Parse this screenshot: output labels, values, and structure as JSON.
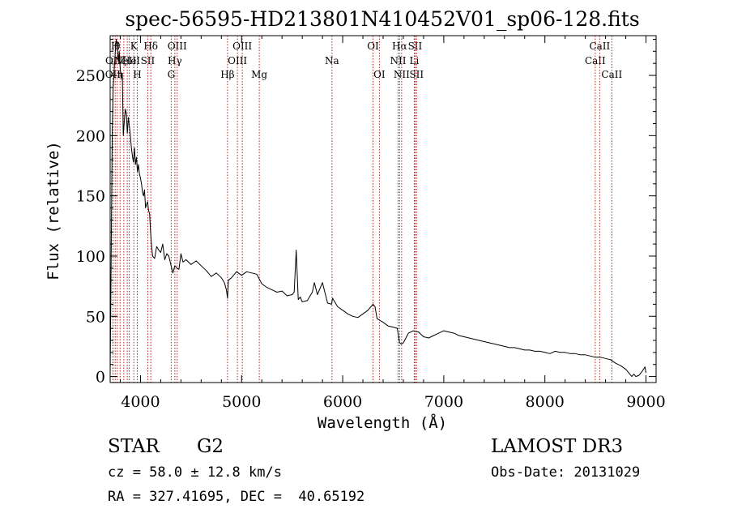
{
  "chart_data": {
    "type": "line",
    "title": "spec-56595-HD213801N410452V01_sp06-128.fits",
    "xlabel": "Wavelength (Å)",
    "ylabel": "Flux (relative)",
    "xlim": [
      3700,
      9100
    ],
    "ylim": [
      -5,
      283
    ],
    "xticks": [
      4000,
      5000,
      6000,
      7000,
      8000,
      9000
    ],
    "yticks": [
      0,
      50,
      100,
      150,
      200,
      250
    ],
    "grid": false,
    "line_color": "#000000",
    "marker_color": "#b22222",
    "series": [
      {
        "x": [
          3700,
          3710,
          3720,
          3730,
          3740,
          3750,
          3760,
          3770,
          3780,
          3790,
          3800,
          3810,
          3820,
          3830,
          3840,
          3850,
          3860,
          3870,
          3880,
          3890,
          3900,
          3910,
          3920,
          3930,
          3940,
          3950,
          3960,
          3970,
          3980,
          3990,
          4000,
          4010,
          4020,
          4030,
          4040,
          4050,
          4060,
          4070,
          4080,
          4090,
          4100,
          4110,
          4120,
          4140,
          4160,
          4180,
          4200,
          4220,
          4240,
          4260,
          4280,
          4300,
          4320,
          4340,
          4360,
          4380,
          4400,
          4420,
          4450,
          4500,
          4550,
          4600,
          4650,
          4700,
          4750,
          4800,
          4830,
          4850,
          4861,
          4870,
          4900,
          4950,
          5000,
          5050,
          5100,
          5150,
          5200,
          5250,
          5300,
          5350,
          5400,
          5450,
          5500,
          5520,
          5540,
          5560,
          5580,
          5600,
          5650,
          5700,
          5720,
          5750,
          5800,
          5850,
          5890,
          5900,
          5950,
          6000,
          6050,
          6100,
          6150,
          6200,
          6250,
          6300,
          6320,
          6340,
          6400,
          6450,
          6500,
          6540,
          6563,
          6580,
          6600,
          6650,
          6700,
          6750,
          6800,
          6850,
          6900,
          6950,
          7000,
          7050,
          7100,
          7150,
          7200,
          7250,
          7300,
          7350,
          7400,
          7450,
          7500,
          7550,
          7600,
          7650,
          7700,
          7750,
          7800,
          7850,
          7900,
          7950,
          8000,
          8050,
          8100,
          8150,
          8200,
          8250,
          8300,
          8350,
          8400,
          8450,
          8500,
          8550,
          8600,
          8650,
          8700,
          8750,
          8800,
          8830,
          8860,
          8880,
          8900,
          8930,
          8960,
          8990,
          9000
        ],
        "values": [
          1,
          95,
          200,
          240,
          255,
          268,
          280,
          275,
          262,
          270,
          255,
          248,
          252,
          200,
          212,
          222,
          218,
          202,
          215,
          208,
          200,
          190,
          183,
          178,
          190,
          176,
          182,
          170,
          176,
          168,
          165,
          160,
          153,
          150,
          155,
          140,
          143,
          145,
          138,
          135,
          120,
          108,
          100,
          98,
          108,
          105,
          103,
          110,
          97,
          102,
          100,
          93,
          86,
          92,
          90,
          89,
          102,
          95,
          97,
          93,
          96,
          92,
          88,
          83,
          86,
          82,
          78,
          72,
          65,
          80,
          82,
          87,
          84,
          87,
          86,
          85,
          77,
          74,
          72,
          70,
          71,
          67,
          68,
          70,
          105,
          64,
          66,
          62,
          63,
          70,
          78,
          68,
          78,
          61,
          60,
          65,
          58,
          55,
          52,
          50,
          49,
          52,
          55,
          60,
          58,
          48,
          45,
          42,
          41,
          40,
          28,
          27,
          28,
          36,
          38,
          37,
          33,
          32,
          34,
          36,
          38,
          37,
          36,
          34,
          33,
          32,
          31,
          30,
          29,
          28,
          27,
          26,
          25,
          24,
          24,
          23,
          22,
          22,
          21,
          21,
          20,
          19,
          21,
          20,
          20,
          19,
          19,
          18,
          18,
          17,
          16,
          16,
          15,
          14,
          11,
          9,
          6,
          3,
          0,
          2,
          0,
          1,
          4,
          8,
          3
        ]
      }
    ],
    "line_markers": [
      {
        "x": 3727,
        "label": "OII",
        "row": 2
      },
      {
        "x": 3729,
        "label": "OII",
        "row": 1
      },
      {
        "x": 3750,
        "label": "H",
        "row": 0
      },
      {
        "x": 3770,
        "label": "θ",
        "row": 0
      },
      {
        "x": 3798,
        "label": "η",
        "row": 2
      },
      {
        "x": 3835,
        "label": "ζ",
        "row": 1
      },
      {
        "x": 3869,
        "label": "NeIII",
        "row": 1
      },
      {
        "x": 3889,
        "label": "He",
        "row": 1
      },
      {
        "x": 3934,
        "label": "K",
        "row": 0
      },
      {
        "x": 3968,
        "label": "H",
        "row": 2
      },
      {
        "x": 4072,
        "label": "SII",
        "row": 1
      },
      {
        "x": 4102,
        "label": "Hδ",
        "row": 0
      },
      {
        "x": 4304,
        "label": "G",
        "row": 2
      },
      {
        "x": 4340,
        "label": "Hγ",
        "row": 1
      },
      {
        "x": 4363,
        "label": "OIII",
        "row": 0
      },
      {
        "x": 4861,
        "label": "Hβ",
        "row": 2
      },
      {
        "x": 4959,
        "label": "OIII",
        "row": 1
      },
      {
        "x": 5007,
        "label": "OIII",
        "row": 0
      },
      {
        "x": 5175,
        "label": "Mg",
        "row": 2
      },
      {
        "x": 5894,
        "label": "Na",
        "row": 1
      },
      {
        "x": 6300,
        "label": "OI",
        "row": 0
      },
      {
        "x": 6363,
        "label": "OI",
        "row": 2
      },
      {
        "x": 6548,
        "label": "NII",
        "row": 1
      },
      {
        "x": 6563,
        "label": "Hα",
        "row": 0
      },
      {
        "x": 6583,
        "label": "NII",
        "row": 2
      },
      {
        "x": 6708,
        "label": "Li",
        "row": 1
      },
      {
        "x": 6716,
        "label": "SII",
        "row": 0
      },
      {
        "x": 6731,
        "label": "SII",
        "row": 2
      },
      {
        "x": 8498,
        "label": "CaII",
        "row": 1
      },
      {
        "x": 8542,
        "label": "CaII",
        "row": 0
      },
      {
        "x": 8662,
        "label": "CaII",
        "row": 2
      }
    ]
  },
  "info": {
    "object_class": "STAR",
    "subclass": "G2",
    "redshift": "cz = 58.0 ± 12.8 km/s",
    "coords": "RA = 327.41695, DEC =  40.65192",
    "survey": "LAMOST DR3",
    "obs_date": "Obs-Date: 20131029"
  }
}
